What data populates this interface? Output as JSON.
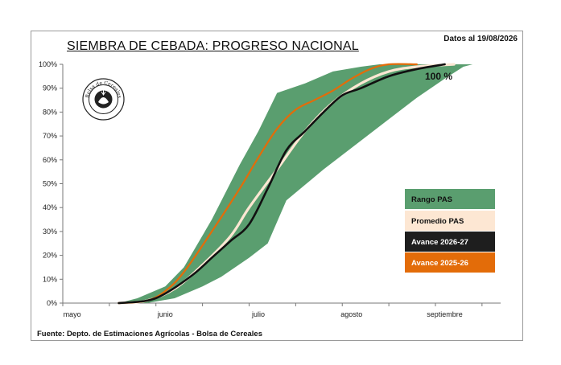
{
  "header": {
    "title": "SIEMBRA DE CEBADA: PROGRESO NACIONAL",
    "date": "Datos al 19/08/2026"
  },
  "footer": {
    "source": "Fuente: Depto. de Estimaciones Agrícolas - Bolsa de Cereales"
  },
  "logo": {
    "text": "Bolsa de Cereales",
    "icon": "bolsa-de-cereales-seal"
  },
  "end_label": "100 %",
  "colors": {
    "range": "#5a9e6f",
    "average": "#fde7d3",
    "current": "#111111",
    "previous": "#e36c09"
  },
  "chart_data": {
    "type": "area",
    "title": "SIEMBRA DE CEBADA: PROGRESO NACIONAL",
    "x_ticks": [
      "mayo",
      "junio",
      "julio",
      "agosto",
      "septiembre"
    ],
    "y_ticks": [
      "0%",
      "10%",
      "20%",
      "30%",
      "40%",
      "50%",
      "60%",
      "70%",
      "80%",
      "90%",
      "100%"
    ],
    "xlim": [
      0,
      4.7
    ],
    "ylim": [
      0,
      100
    ],
    "grid": false,
    "legend_position": "right",
    "legend": [
      "Rango PAS",
      "Promedio PAS",
      "Avance 2026-27",
      "Avance 2025-26"
    ],
    "series": [
      {
        "name": "Rango PAS",
        "kind": "band",
        "upper": [
          [
            0.6,
            0
          ],
          [
            0.8,
            2
          ],
          [
            1.1,
            7
          ],
          [
            1.3,
            15
          ],
          [
            1.6,
            35
          ],
          [
            1.9,
            58
          ],
          [
            2.1,
            72
          ],
          [
            2.3,
            88
          ],
          [
            2.6,
            92
          ],
          [
            2.9,
            97
          ],
          [
            3.2,
            99
          ],
          [
            3.4,
            100
          ],
          [
            4.0,
            100
          ]
        ],
        "lower": [
          [
            0.6,
            0
          ],
          [
            0.9,
            0
          ],
          [
            1.2,
            2
          ],
          [
            1.5,
            7
          ],
          [
            1.7,
            11
          ],
          [
            2.0,
            19
          ],
          [
            2.2,
            25
          ],
          [
            2.4,
            43
          ],
          [
            2.8,
            56
          ],
          [
            3.2,
            68
          ],
          [
            3.5,
            77
          ],
          [
            3.8,
            86
          ],
          [
            4.1,
            94
          ],
          [
            4.3,
            99
          ],
          [
            4.4,
            100
          ]
        ]
      },
      {
        "name": "Promedio PAS",
        "kind": "line",
        "points": [
          [
            0.6,
            0
          ],
          [
            0.9,
            1
          ],
          [
            1.2,
            6
          ],
          [
            1.5,
            16
          ],
          [
            1.8,
            28
          ],
          [
            2.0,
            40
          ],
          [
            2.3,
            56
          ],
          [
            2.6,
            72
          ],
          [
            2.9,
            84
          ],
          [
            3.2,
            92
          ],
          [
            3.5,
            97
          ],
          [
            3.8,
            99
          ],
          [
            4.2,
            100
          ]
        ]
      },
      {
        "name": "Avance 2026-27",
        "kind": "line",
        "points": [
          [
            0.6,
            0
          ],
          [
            0.9,
            1
          ],
          [
            1.1,
            4
          ],
          [
            1.4,
            12
          ],
          [
            1.6,
            19
          ],
          [
            1.8,
            26
          ],
          [
            2.0,
            33
          ],
          [
            2.2,
            48
          ],
          [
            2.4,
            64
          ],
          [
            2.6,
            72
          ],
          [
            2.8,
            80
          ],
          [
            3.0,
            87
          ],
          [
            3.2,
            90
          ],
          [
            3.5,
            95
          ],
          [
            3.8,
            98
          ],
          [
            4.1,
            100
          ]
        ]
      },
      {
        "name": "Avance 2025-26",
        "kind": "line",
        "points": [
          [
            0.6,
            0
          ],
          [
            0.9,
            1
          ],
          [
            1.1,
            5
          ],
          [
            1.3,
            13
          ],
          [
            1.6,
            30
          ],
          [
            1.9,
            48
          ],
          [
            2.1,
            61
          ],
          [
            2.3,
            73
          ],
          [
            2.5,
            81
          ],
          [
            2.7,
            85
          ],
          [
            2.9,
            89
          ],
          [
            3.1,
            94
          ],
          [
            3.3,
            98
          ],
          [
            3.5,
            100
          ],
          [
            3.8,
            100
          ]
        ]
      }
    ]
  }
}
